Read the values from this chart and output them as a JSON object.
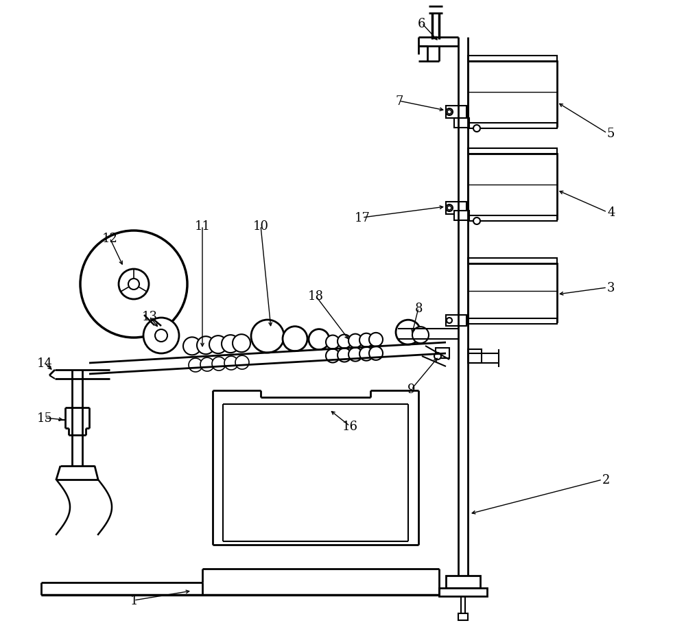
{
  "bg_color": "#ffffff",
  "line_color": "#000000",
  "label_color": "#000000",
  "figsize": [
    10.0,
    9.28
  ],
  "dpi": 100
}
